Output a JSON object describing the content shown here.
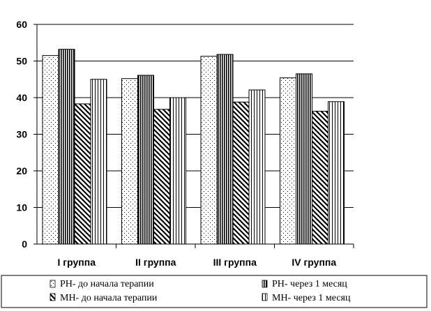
{
  "chart_data": {
    "type": "bar",
    "title": "",
    "xlabel": "",
    "ylabel": "",
    "ylim": [
      0,
      60
    ],
    "yticks": [
      0,
      10,
      20,
      30,
      40,
      50,
      60
    ],
    "grid": true,
    "legend_position": "bottom",
    "categories": [
      "I группа",
      "II группа",
      "III группа",
      "IV группа"
    ],
    "series": [
      {
        "name": "РН- до начала терапии",
        "pattern": "dots",
        "values": [
          51.5,
          45.2,
          51.3,
          45.4
        ]
      },
      {
        "name": "РН- через 1 месяц",
        "pattern": "dense-vertical",
        "values": [
          53.2,
          46.1,
          51.8,
          46.5
        ]
      },
      {
        "name": "МН- до начала терапии",
        "pattern": "diagonal",
        "values": [
          38.3,
          36.8,
          38.8,
          36.3
        ]
      },
      {
        "name": "МН- через 1 месяц",
        "pattern": "vertical",
        "values": [
          45.0,
          40.0,
          42.1,
          38.9
        ]
      }
    ]
  }
}
